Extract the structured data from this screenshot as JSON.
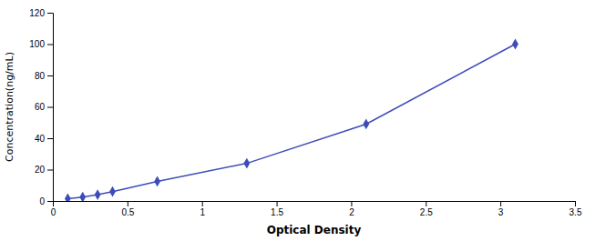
{
  "chart_data": {
    "type": "line",
    "x": [
      0.1,
      0.2,
      0.3,
      0.4,
      0.7,
      1.3,
      2.1,
      3.1
    ],
    "values": [
      1.5,
      2.5,
      4.0,
      6.0,
      12.5,
      24.0,
      49.0,
      100.0
    ],
    "color": "#3d4db7",
    "marker": "diamond",
    "xlabel": "Optical Density",
    "ylabel": "Concentration(ng/mL)",
    "xlim": [
      0,
      3.5
    ],
    "ylim": [
      0,
      120
    ],
    "xticks": [
      0,
      0.5,
      1,
      1.5,
      2,
      2.5,
      3,
      3.5
    ],
    "yticks": [
      0,
      20,
      40,
      60,
      80,
      100,
      120
    ]
  }
}
